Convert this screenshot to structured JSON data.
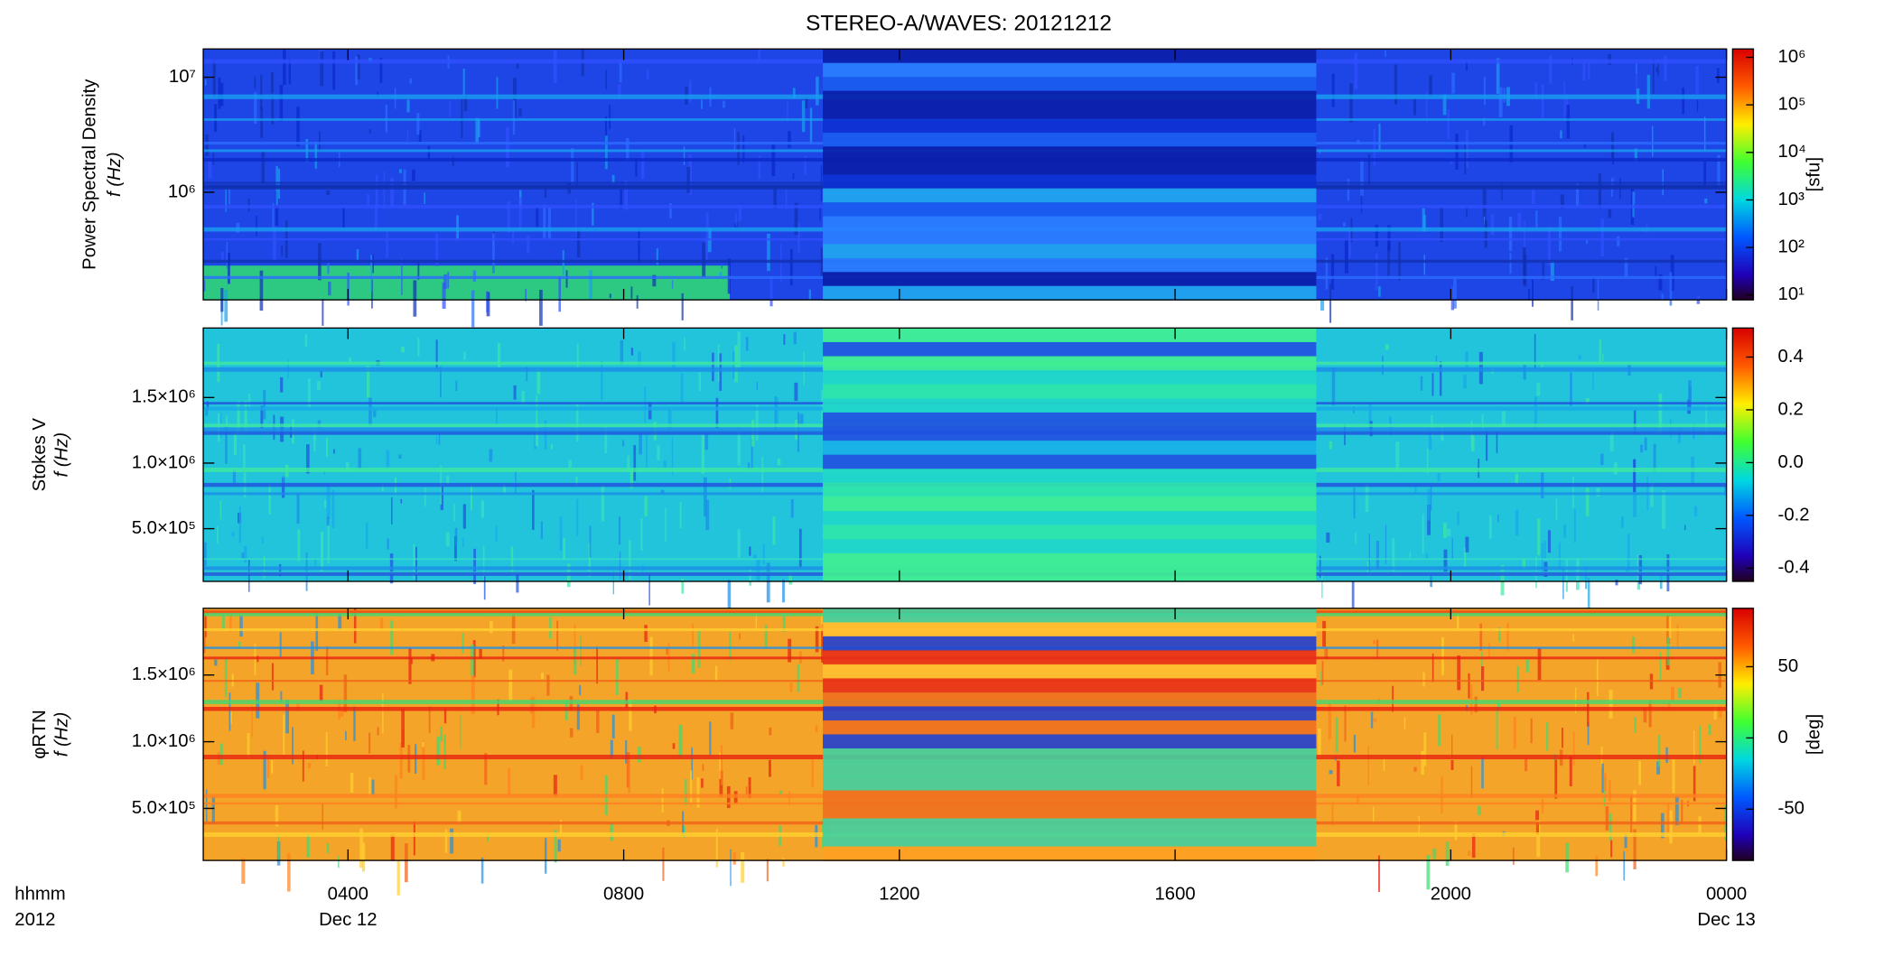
{
  "title": "STEREO-A/WAVES: 20121212",
  "x_axis": {
    "row_labels": [
      "hhmm",
      "2012"
    ],
    "xlim": [
      1.9,
      24
    ],
    "xticks": [
      {
        "value": 4,
        "label": "0400"
      },
      {
        "value": 8,
        "label": "0800"
      },
      {
        "value": 12,
        "label": "1200"
      },
      {
        "value": 16,
        "label": "1600"
      },
      {
        "value": 20,
        "label": "2000"
      },
      {
        "value": 24,
        "label": "0000"
      }
    ],
    "date_ticks": [
      {
        "value": 4,
        "label": "Dec 12"
      },
      {
        "value": 24,
        "label": "Dec 13"
      }
    ]
  },
  "chart_data": [
    {
      "type": "heatmap",
      "ylabel": [
        "Power Spectral Density",
        "f (Hz)"
      ],
      "yscale": "log",
      "ylim": [
        116000,
        17600000
      ],
      "yticks": [
        {
          "value": 1000000,
          "label": "10⁶"
        },
        {
          "value": 10000000,
          "label": "10⁷"
        }
      ],
      "colorbar": {
        "scale": "log",
        "lim": [
          7.9,
          1500000
        ],
        "label": "[sfu]",
        "ticks": [
          {
            "value": 10,
            "label": "10¹"
          },
          {
            "value": 100,
            "label": "10²"
          },
          {
            "value": 1000,
            "label": "10³"
          },
          {
            "value": 10000,
            "label": "10⁴"
          },
          {
            "value": 100000,
            "label": "10⁵"
          },
          {
            "value": 1000000,
            "label": "10⁶"
          }
        ]
      }
    },
    {
      "type": "heatmap",
      "ylabel": [
        "Stokes V",
        "f (Hz)"
      ],
      "yscale": "linear",
      "ylim": [
        98000,
        2030000
      ],
      "yticks": [
        {
          "value": 500000,
          "label": "5.0×10⁵"
        },
        {
          "value": 1000000,
          "label": "1.0×10⁶"
        },
        {
          "value": 1500000,
          "label": "1.5×10⁶"
        }
      ],
      "colorbar": {
        "scale": "linear",
        "lim": [
          -0.45,
          0.51
        ],
        "ticks": [
          -0.4,
          -0.2,
          {
            "value": 0,
            "label": "0.0"
          },
          0.2,
          0.4
        ]
      }
    },
    {
      "type": "heatmap",
      "ylabel": [
        "φRTN",
        "f (Hz)"
      ],
      "yscale": "linear",
      "ylim": [
        110000,
        2000000
      ],
      "yticks": [
        {
          "value": 500000,
          "label": "5.0×10⁵"
        },
        {
          "value": 1000000,
          "label": "1.0×10⁶"
        },
        {
          "value": 1500000,
          "label": "1.5×10⁶"
        }
      ],
      "colorbar": {
        "scale": "linear",
        "lim": [
          -86,
          91
        ],
        "label": "[deg]",
        "ticks": [
          -50,
          0,
          50
        ]
      }
    }
  ]
}
